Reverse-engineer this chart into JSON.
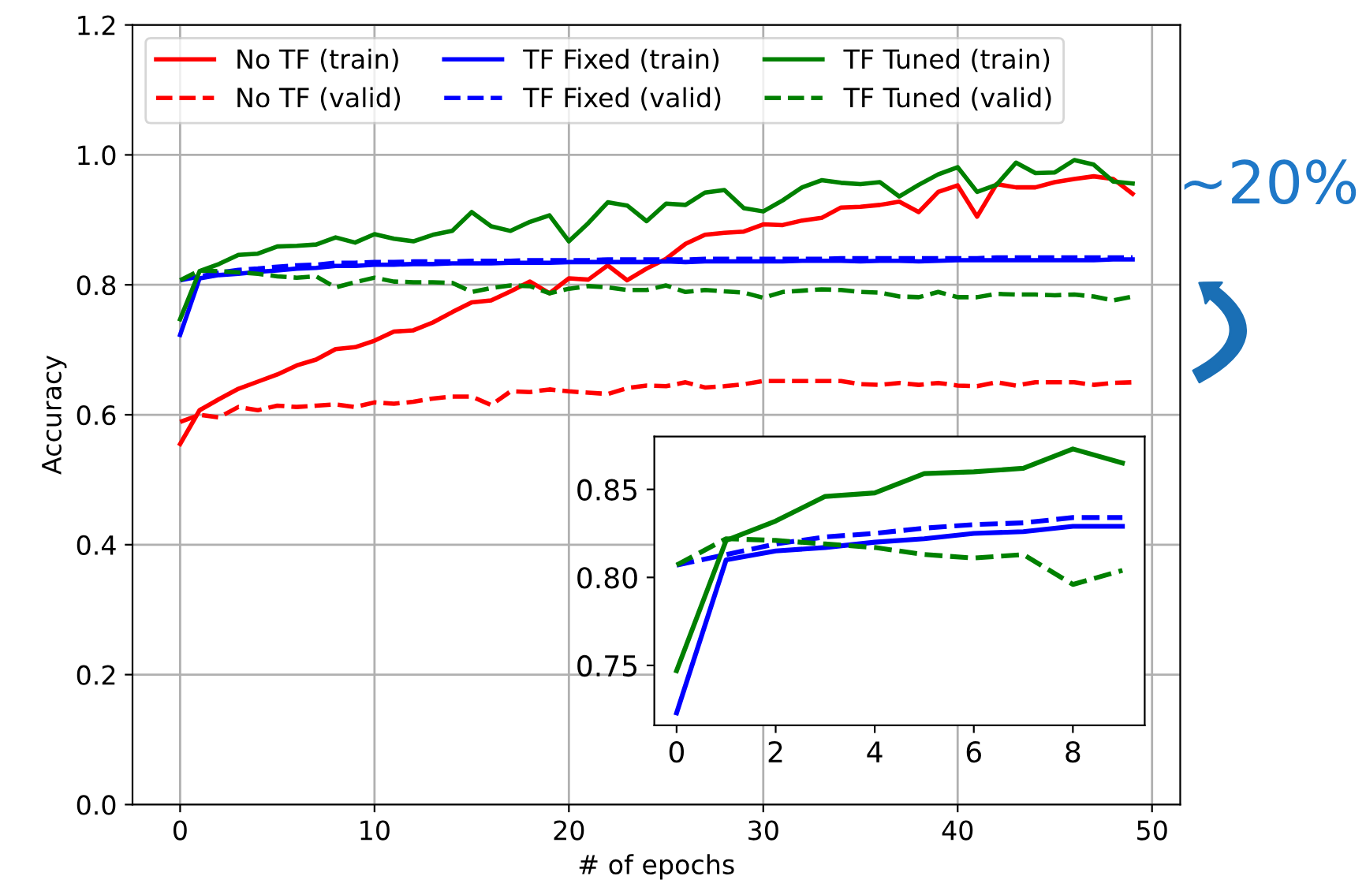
{
  "chart_data": [
    {
      "type": "line",
      "xlabel": "# of epochs",
      "ylabel": "Accuracy",
      "legend": "top left",
      "grid": true,
      "x": [
        0,
        1,
        2,
        3,
        4,
        5,
        6,
        7,
        8,
        9,
        10,
        11,
        12,
        13,
        14,
        15,
        16,
        17,
        18,
        19,
        20,
        21,
        22,
        23,
        24,
        25,
        26,
        27,
        28,
        29,
        30,
        31,
        32,
        33,
        34,
        35,
        36,
        37,
        38,
        39,
        40,
        41,
        42,
        43,
        44,
        45,
        46,
        47,
        48,
        49
      ],
      "xlim": [
        -2.45,
        51.45
      ],
      "xticks": [
        0,
        10,
        20,
        30,
        40,
        50
      ],
      "ylim": [
        0,
        1.2
      ],
      "yticks": [
        {
          "value": 0,
          "label": "0.0"
        },
        {
          "value": 0.2,
          "label": "0.2"
        },
        {
          "value": 0.4,
          "label": "0.4"
        },
        {
          "value": 0.6,
          "label": "0.6"
        },
        {
          "value": 0.8,
          "label": "0.8"
        },
        {
          "value": 1.0,
          "label": "1.0"
        },
        {
          "value": 1.2,
          "label": "1.2"
        }
      ],
      "series": [
        {
          "name": "No TF (train)",
          "color": "#ff0000",
          "line_style": "solid",
          "values": [
            0.555,
            0.607,
            0.624,
            0.64,
            0.651,
            0.662,
            0.676,
            0.685,
            0.701,
            0.704,
            0.714,
            0.728,
            0.73,
            0.742,
            0.758,
            0.773,
            0.776,
            0.79,
            0.805,
            0.787,
            0.81,
            0.808,
            0.83,
            0.807,
            0.825,
            0.84,
            0.863,
            0.877,
            0.88,
            0.882,
            0.893,
            0.892,
            0.899,
            0.903,
            0.919,
            0.92,
            0.923,
            0.928,
            0.912,
            0.943,
            0.953,
            0.905,
            0.955,
            0.95,
            0.95,
            0.958,
            0.963,
            0.967,
            0.963,
            0.94
          ]
        },
        {
          "name": "No TF (valid)",
          "color": "#ff0000",
          "line_style": "dashed",
          "values": [
            0.589,
            0.6,
            0.596,
            0.612,
            0.607,
            0.614,
            0.612,
            0.614,
            0.616,
            0.612,
            0.619,
            0.617,
            0.62,
            0.625,
            0.628,
            0.628,
            0.615,
            0.636,
            0.635,
            0.639,
            0.636,
            0.634,
            0.632,
            0.641,
            0.645,
            0.644,
            0.65,
            0.642,
            0.644,
            0.647,
            0.652,
            0.652,
            0.652,
            0.652,
            0.652,
            0.647,
            0.646,
            0.649,
            0.646,
            0.649,
            0.645,
            0.644,
            0.65,
            0.645,
            0.65,
            0.65,
            0.65,
            0.646,
            0.649,
            0.65
          ]
        },
        {
          "name": "TF Fixed (train)",
          "color": "#0000ff",
          "line_style": "solid",
          "values": [
            0.723,
            0.81,
            0.815,
            0.817,
            0.82,
            0.822,
            0.825,
            0.826,
            0.829,
            0.829,
            0.831,
            0.831,
            0.832,
            0.832,
            0.833,
            0.833,
            0.833,
            0.834,
            0.834,
            0.834,
            0.835,
            0.835,
            0.835,
            0.835,
            0.835,
            0.836,
            0.835,
            0.836,
            0.836,
            0.836,
            0.836,
            0.836,
            0.837,
            0.837,
            0.837,
            0.836,
            0.837,
            0.837,
            0.836,
            0.837,
            0.838,
            0.838,
            0.838,
            0.838,
            0.838,
            0.838,
            0.838,
            0.838,
            0.839,
            0.839
          ]
        },
        {
          "name": "TF Fixed (valid)",
          "color": "#0000ff",
          "line_style": "dashed",
          "values": [
            0.807,
            0.813,
            0.819,
            0.823,
            0.825,
            0.828,
            0.83,
            0.831,
            0.834,
            0.834,
            0.835,
            0.835,
            0.836,
            0.836,
            0.836,
            0.837,
            0.837,
            0.837,
            0.838,
            0.838,
            0.838,
            0.838,
            0.839,
            0.839,
            0.839,
            0.839,
            0.839,
            0.84,
            0.84,
            0.84,
            0.84,
            0.84,
            0.84,
            0.84,
            0.841,
            0.841,
            0.841,
            0.841,
            0.841,
            0.841,
            0.841,
            0.841,
            0.842,
            0.842,
            0.842,
            0.842,
            0.842,
            0.842,
            0.842,
            0.842
          ]
        },
        {
          "name": "TF Tuned (train)",
          "color": "#008000",
          "line_style": "solid",
          "values": [
            0.747,
            0.821,
            0.832,
            0.846,
            0.848,
            0.859,
            0.86,
            0.862,
            0.873,
            0.865,
            0.878,
            0.871,
            0.867,
            0.877,
            0.883,
            0.912,
            0.89,
            0.883,
            0.897,
            0.907,
            0.867,
            0.895,
            0.927,
            0.922,
            0.898,
            0.925,
            0.923,
            0.942,
            0.946,
            0.918,
            0.913,
            0.93,
            0.95,
            0.961,
            0.957,
            0.955,
            0.958,
            0.936,
            0.954,
            0.97,
            0.981,
            0.943,
            0.954,
            0.988,
            0.972,
            0.973,
            0.992,
            0.985,
            0.959,
            0.956
          ]
        },
        {
          "name": "TF Tuned (valid)",
          "color": "#008000",
          "line_style": "dashed",
          "values": [
            0.807,
            0.822,
            0.821,
            0.819,
            0.817,
            0.813,
            0.811,
            0.813,
            0.796,
            0.804,
            0.811,
            0.805,
            0.804,
            0.804,
            0.803,
            0.789,
            0.795,
            0.799,
            0.798,
            0.787,
            0.794,
            0.798,
            0.796,
            0.792,
            0.792,
            0.799,
            0.789,
            0.792,
            0.79,
            0.788,
            0.78,
            0.789,
            0.791,
            0.793,
            0.792,
            0.789,
            0.788,
            0.782,
            0.781,
            0.789,
            0.781,
            0.781,
            0.786,
            0.785,
            0.785,
            0.784,
            0.785,
            0.782,
            0.776,
            0.782
          ]
        }
      ],
      "annotations": [
        "~20%"
      ]
    },
    {
      "type": "line",
      "grid": false,
      "x": [
        0,
        1,
        2,
        3,
        4,
        5,
        6,
        7,
        8,
        9
      ],
      "xlim": [
        -0.45,
        9.45
      ],
      "xticks": [
        0,
        2,
        4,
        6,
        8
      ],
      "ylim": [
        0.716,
        0.88
      ],
      "yticks": [
        0.75,
        {
          "value": 0.8,
          "label": "0.80"
        },
        0.85
      ],
      "series": [
        {
          "color": "#0000ff",
          "line_style": "solid",
          "values": [
            0.723,
            0.81,
            0.815,
            0.817,
            0.82,
            0.822,
            0.825,
            0.826,
            0.829,
            0.829
          ]
        },
        {
          "color": "#0000ff",
          "line_style": "dashed",
          "values": [
            0.807,
            0.813,
            0.819,
            0.823,
            0.825,
            0.828,
            0.83,
            0.831,
            0.834,
            0.834
          ]
        },
        {
          "color": "#008000",
          "line_style": "solid",
          "values": [
            0.747,
            0.821,
            0.832,
            0.846,
            0.848,
            0.859,
            0.86,
            0.862,
            0.873,
            0.865
          ]
        },
        {
          "color": "#008000",
          "line_style": "dashed",
          "values": [
            0.807,
            0.822,
            0.821,
            0.819,
            0.817,
            0.813,
            0.811,
            0.813,
            0.796,
            0.804
          ]
        }
      ]
    }
  ]
}
